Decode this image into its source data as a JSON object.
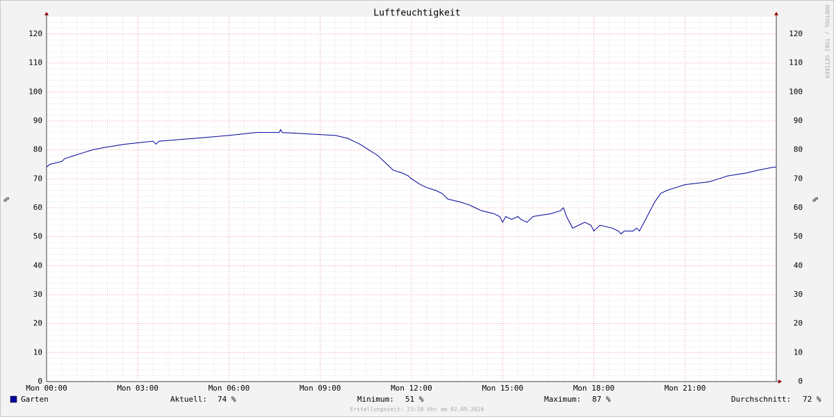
{
  "chart_data": {
    "type": "line",
    "title": "Luftfeuchtigkeit",
    "y_label": "%",
    "y2_label": "%",
    "watermark": "RRDTOOL / TOBI OETIKER",
    "x": [
      0,
      0.1,
      0.5,
      0.6,
      0.9,
      1.2,
      1.5,
      2.0,
      2.6,
      3.5,
      3.6,
      3.7,
      4.9,
      6.0,
      6.9,
      7.65,
      7.7,
      7.75,
      9.5,
      9.9,
      10.3,
      10.6,
      10.9,
      11.1,
      11.3,
      11.4,
      11.7,
      11.9,
      12.0,
      12.3,
      12.5,
      12.8,
      13.0,
      13.2,
      13.6,
      13.9,
      14.1,
      14.3,
      14.7,
      14.9,
      15.0,
      15.1,
      15.3,
      15.5,
      15.6,
      15.8,
      16.0,
      16.6,
      16.9,
      17.0,
      17.1,
      17.3,
      17.5,
      17.7,
      17.9,
      18.0,
      18.2,
      18.6,
      18.8,
      18.9,
      19.0,
      19.3,
      19.4,
      19.5,
      19.6,
      19.8,
      20.0,
      20.2,
      20.4,
      20.7,
      21.0,
      21.8,
      22.1,
      22.4,
      23.0,
      23.4,
      23.9,
      24.0
    ],
    "series": [
      {
        "name": "Garten",
        "color": "#000099",
        "values": [
          74,
          75,
          76,
          77,
          78,
          79,
          80,
          81,
          82,
          83,
          82,
          83,
          84,
          85,
          86,
          86,
          87,
          86,
          85,
          84,
          82,
          80,
          78,
          76,
          74,
          73,
          72,
          71,
          70,
          68,
          67,
          66,
          65,
          63,
          62,
          61,
          60,
          59,
          58,
          57,
          55,
          57,
          56,
          57,
          56,
          55,
          57,
          58,
          59,
          60,
          57,
          53,
          54,
          55,
          54,
          52,
          54,
          53,
          52,
          51,
          52,
          52,
          53,
          52,
          54,
          58,
          62,
          65,
          66,
          67,
          68,
          69,
          70,
          71,
          72,
          73,
          74,
          74
        ]
      }
    ],
    "xlim": [
      0,
      24
    ],
    "xticks": [
      {
        "value": 0,
        "label": "Mon 00:00"
      },
      {
        "value": 3,
        "label": "Mon 03:00"
      },
      {
        "value": 6,
        "label": "Mon 06:00"
      },
      {
        "value": 9,
        "label": "Mon 09:00"
      },
      {
        "value": 12,
        "label": "Mon 12:00"
      },
      {
        "value": 15,
        "label": "Mon 15:00"
      },
      {
        "value": 18,
        "label": "Mon 18:00"
      },
      {
        "value": 21,
        "label": "Mon 21:00"
      }
    ],
    "ylim": [
      0,
      126
    ],
    "yticks": [
      0,
      10,
      20,
      30,
      40,
      50,
      60,
      70,
      80,
      90,
      100,
      110,
      120
    ],
    "grid": true,
    "stats": [
      [
        "Aktuell:",
        "74 %"
      ],
      [
        "Minimum:",
        "51 %"
      ],
      [
        "Maximum:",
        "87 %"
      ],
      [
        "Durchschnitt:",
        "72 %"
      ]
    ],
    "footer": "Erstellungszeit: 23:58 Uhr am 02.09.2024"
  }
}
